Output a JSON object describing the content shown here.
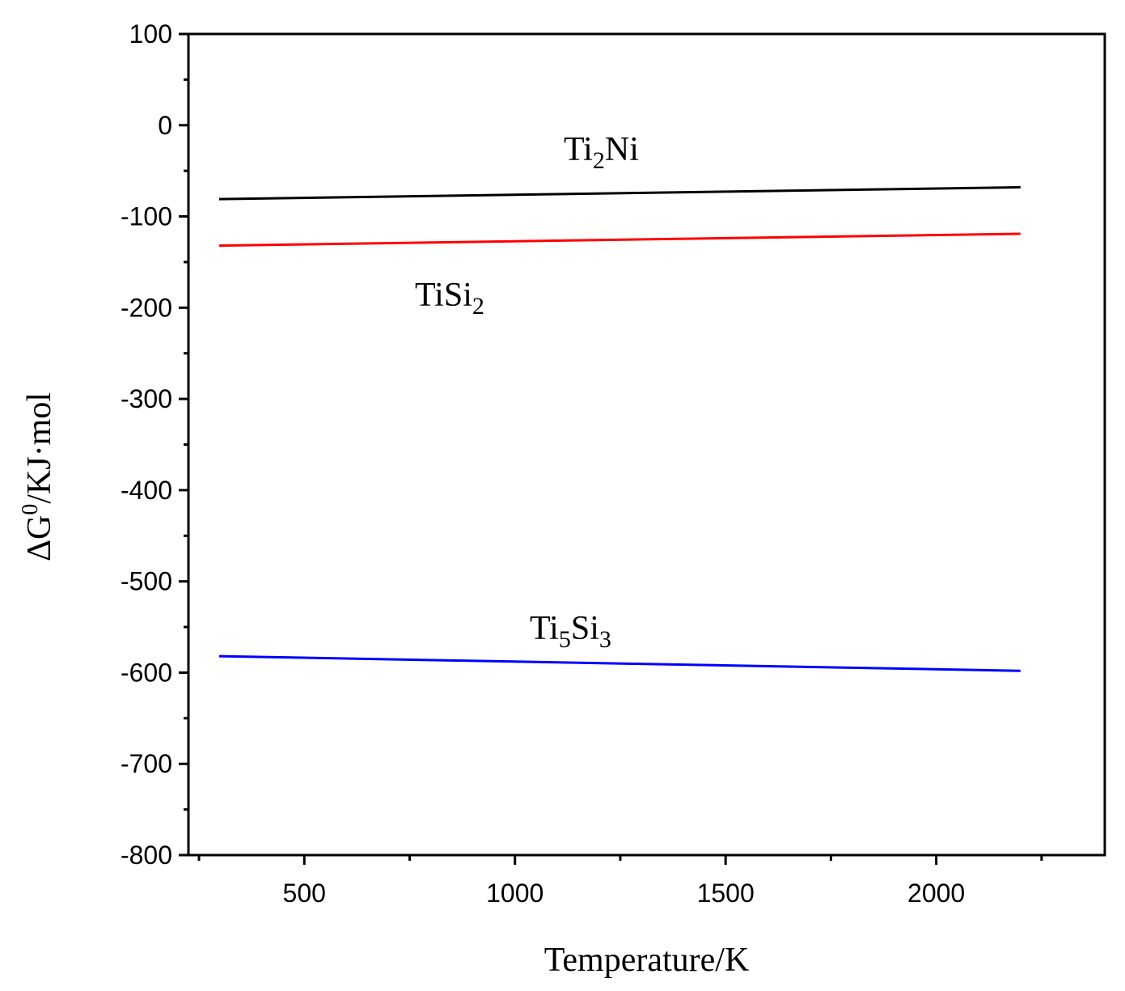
{
  "chart_data": {
    "type": "line",
    "title": "",
    "xlabel": "Temperature/K",
    "ylabel": {
      "delta": "ΔG",
      "superscript": "0",
      "rest": "/KJ·mol"
    },
    "xlim": [
      225,
      2400
    ],
    "ylim": [
      -800,
      100
    ],
    "x_ticks": [
      500,
      1000,
      1500,
      2000
    ],
    "x_ticks_labeled": [
      "500",
      "1000",
      "1500",
      "2000"
    ],
    "y_ticks": [
      100,
      0,
      -100,
      -200,
      -300,
      -400,
      -500,
      -600,
      -700,
      -800
    ],
    "y_ticks_labeled": [
      "100",
      "0",
      "-100",
      "-200",
      "-300",
      "-400",
      "-500",
      "-600",
      "-700",
      "-800"
    ],
    "grid": false,
    "series": [
      {
        "name": "Ti2Ni",
        "label_parts": [
          {
            "t": "Ti",
            "sub": false
          },
          {
            "t": "2",
            "sub": true
          },
          {
            "t": "Ni",
            "sub": false
          }
        ],
        "color": "#000000",
        "x": [
          298,
          2200
        ],
        "y": [
          -81,
          -68
        ]
      },
      {
        "name": "TiSi2",
        "label_parts": [
          {
            "t": "TiSi",
            "sub": false
          },
          {
            "t": "2",
            "sub": true
          }
        ],
        "color": "#ff0000",
        "x": [
          298,
          2200
        ],
        "y": [
          -132,
          -119
        ]
      },
      {
        "name": "Ti5Si3",
        "label_parts": [
          {
            "t": "Ti",
            "sub": false
          },
          {
            "t": "5",
            "sub": true
          },
          {
            "t": "Si",
            "sub": false
          },
          {
            "t": "3",
            "sub": true
          }
        ],
        "color": "#0000ff",
        "x": [
          298,
          2200
        ],
        "y": [
          -582,
          -598
        ]
      }
    ]
  }
}
